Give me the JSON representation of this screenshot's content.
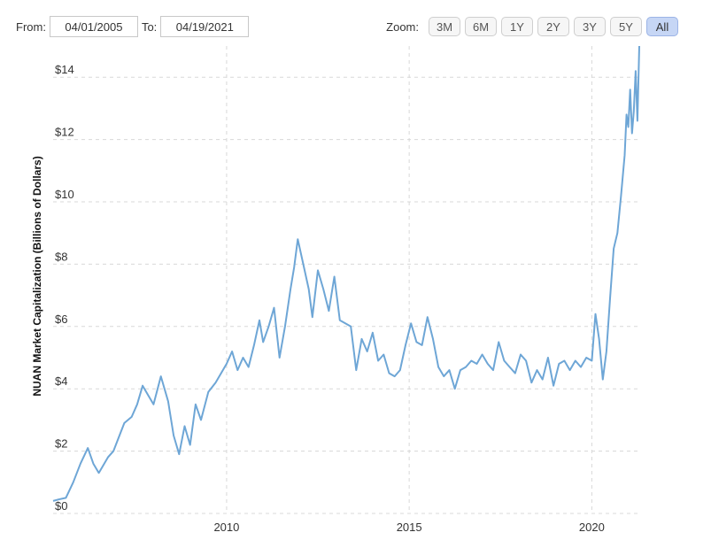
{
  "range": {
    "from_label": "From:",
    "from_value": "04/01/2005",
    "to_label": "To:",
    "to_value": "04/19/2021"
  },
  "zoom": {
    "label": "Zoom:",
    "buttons": [
      "3M",
      "6M",
      "1Y",
      "2Y",
      "3Y",
      "5Y",
      "All"
    ],
    "active": "All"
  },
  "colors": {
    "line": "#6ea6d6",
    "grid": "#d8d8d8",
    "active_zoom": "#c6d6f5"
  },
  "chart_data": {
    "type": "line",
    "title": "",
    "xlabel": "",
    "ylabel": "NUAN Market Capitalization (Billions of Dollars)",
    "xlim": [
      2005.25,
      2021.3
    ],
    "ylim": [
      0,
      15
    ],
    "y_ticks": [
      0,
      2,
      4,
      6,
      8,
      10,
      12,
      14
    ],
    "y_tick_labels": [
      "$0",
      "$2",
      "$4",
      "$6",
      "$8",
      "$10",
      "$12",
      "$14"
    ],
    "x_ticks": [
      2010,
      2015,
      2020
    ],
    "x_tick_labels": [
      "2010",
      "2015",
      "2020"
    ],
    "grid": true,
    "series": [
      {
        "name": "",
        "x": [
          2005.25,
          2005.4,
          2005.6,
          2005.8,
          2006.0,
          2006.2,
          2006.35,
          2006.5,
          2006.6,
          2006.75,
          2006.9,
          2007.0,
          2007.2,
          2007.4,
          2007.55,
          2007.7,
          2007.85,
          2008.0,
          2008.2,
          2008.4,
          2008.55,
          2008.7,
          2008.85,
          2009.0,
          2009.15,
          2009.3,
          2009.5,
          2009.7,
          2009.85,
          2010.0,
          2010.15,
          2010.3,
          2010.45,
          2010.6,
          2010.75,
          2010.9,
          2011.0,
          2011.15,
          2011.3,
          2011.45,
          2011.6,
          2011.75,
          2011.85,
          2011.95,
          2012.1,
          2012.25,
          2012.35,
          2012.5,
          2012.65,
          2012.8,
          2012.95,
          2013.1,
          2013.25,
          2013.4,
          2013.55,
          2013.7,
          2013.85,
          2014.0,
          2014.15,
          2014.3,
          2014.45,
          2014.6,
          2014.75,
          2014.9,
          2015.05,
          2015.2,
          2015.35,
          2015.5,
          2015.65,
          2015.8,
          2015.95,
          2016.1,
          2016.25,
          2016.4,
          2016.55,
          2016.7,
          2016.85,
          2017.0,
          2017.15,
          2017.3,
          2017.45,
          2017.6,
          2017.75,
          2017.9,
          2018.05,
          2018.2,
          2018.35,
          2018.5,
          2018.65,
          2018.8,
          2018.95,
          2019.1,
          2019.25,
          2019.4,
          2019.55,
          2019.7,
          2019.85,
          2020.0,
          2020.1,
          2020.2,
          2020.3,
          2020.4,
          2020.5,
          2020.6,
          2020.7,
          2020.8,
          2020.9,
          2020.95,
          2021.0,
          2021.05,
          2021.1,
          2021.15,
          2021.2,
          2021.25,
          2021.3
        ],
        "values": [
          0.4,
          0.45,
          0.5,
          1.0,
          1.6,
          2.1,
          1.6,
          1.3,
          1.5,
          1.8,
          2.0,
          2.3,
          2.9,
          3.1,
          3.5,
          4.1,
          3.8,
          3.5,
          4.4,
          3.6,
          2.5,
          1.9,
          2.8,
          2.2,
          3.5,
          3.0,
          3.9,
          4.2,
          4.5,
          4.8,
          5.2,
          4.6,
          5.0,
          4.7,
          5.4,
          6.2,
          5.5,
          6.0,
          6.6,
          5.0,
          6.0,
          7.2,
          7.9,
          8.8,
          8.0,
          7.2,
          6.3,
          7.8,
          7.2,
          6.5,
          7.6,
          6.2,
          6.1,
          6.0,
          4.6,
          5.6,
          5.2,
          5.8,
          4.9,
          5.1,
          4.5,
          4.4,
          4.6,
          5.4,
          6.1,
          5.5,
          5.4,
          6.3,
          5.6,
          4.7,
          4.4,
          4.6,
          4.0,
          4.6,
          4.7,
          4.9,
          4.8,
          5.1,
          4.8,
          4.6,
          5.5,
          4.9,
          4.7,
          4.5,
          5.1,
          4.9,
          4.2,
          4.6,
          4.3,
          5.0,
          4.1,
          4.8,
          4.9,
          4.6,
          4.9,
          4.7,
          5.0,
          4.9,
          6.4,
          5.6,
          4.3,
          5.2,
          6.9,
          8.5,
          9.0,
          10.2,
          11.5,
          12.8,
          12.4,
          13.6,
          12.2,
          12.9,
          14.2,
          12.6,
          15.0
        ]
      }
    ]
  }
}
